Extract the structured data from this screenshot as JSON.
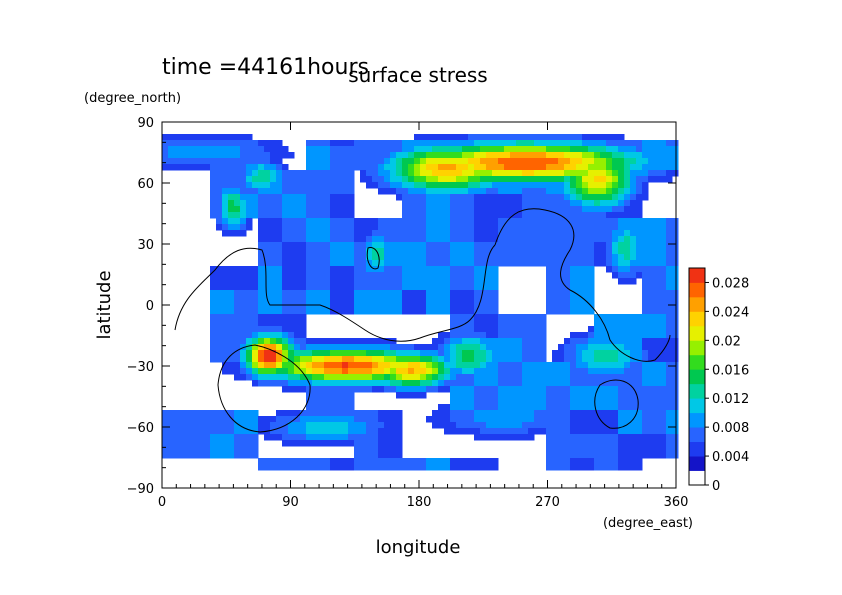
{
  "time_label": "time =44161hours",
  "chart_data": {
    "type": "heatmap",
    "title": "surface stress",
    "xlabel": "longitude",
    "ylabel": "latitude",
    "x_unit": "(degree_east)",
    "y_unit": "(degree_north)",
    "xlim": [
      0,
      360
    ],
    "ylim": [
      -90,
      90
    ],
    "x_ticks": [
      0,
      90,
      180,
      270,
      360
    ],
    "y_ticks": [
      -90,
      -60,
      -30,
      0,
      30,
      60,
      90
    ],
    "colorbar": {
      "min": 0,
      "max": 0.03,
      "tick_values": [
        0,
        0.004,
        0.008,
        0.012,
        0.016,
        0.02,
        0.024,
        0.028
      ],
      "tick_labels": [
        "0",
        "0.004",
        "0.008",
        "0.012",
        "0.016",
        "0.02",
        "0.024",
        "0.028"
      ],
      "colors": [
        "#ffffff",
        "#1414c8",
        "#1e3cf0",
        "#2864ff",
        "#0096ff",
        "#00c8e6",
        "#00d2a0",
        "#00c850",
        "#32dc1e",
        "#96f000",
        "#e6f000",
        "#ffd200",
        "#ffa000",
        "#ff6400",
        "#f03214"
      ]
    },
    "grid": false,
    "features": [
      {
        "lon": 255,
        "lat": 70,
        "value": 0.028,
        "spread_lon": 55,
        "spread_lat": 7
      },
      {
        "lon": 200,
        "lat": 67,
        "value": 0.024,
        "spread_lon": 30,
        "spread_lat": 8
      },
      {
        "lon": 305,
        "lat": 62,
        "value": 0.022,
        "spread_lon": 18,
        "spread_lat": 10
      },
      {
        "lon": 75,
        "lat": -25,
        "value": 0.03,
        "spread_lon": 12,
        "spread_lat": 7
      },
      {
        "lon": 130,
        "lat": -30,
        "value": 0.028,
        "spread_lon": 40,
        "spread_lat": 6
      },
      {
        "lon": 175,
        "lat": -32,
        "value": 0.024,
        "spread_lon": 20,
        "spread_lat": 6
      },
      {
        "lon": 215,
        "lat": -25,
        "value": 0.014,
        "spread_lon": 15,
        "spread_lat": 8
      },
      {
        "lon": 310,
        "lat": -25,
        "value": 0.012,
        "spread_lon": 20,
        "spread_lat": 8
      },
      {
        "lon": 50,
        "lat": 48,
        "value": 0.014,
        "spread_lon": 8,
        "spread_lat": 8
      },
      {
        "lon": 70,
        "lat": 63,
        "value": 0.012,
        "spread_lon": 12,
        "spread_lat": 6
      },
      {
        "lon": 150,
        "lat": 25,
        "value": 0.012,
        "spread_lon": 8,
        "spread_lat": 8
      },
      {
        "lon": 115,
        "lat": -60,
        "value": 0.01,
        "spread_lon": 30,
        "spread_lat": 6
      },
      {
        "lon": 240,
        "lat": -55,
        "value": 0.008,
        "spread_lon": 35,
        "spread_lat": 7
      },
      {
        "lon": 325,
        "lat": 28,
        "value": 0.012,
        "spread_lon": 10,
        "spread_lat": 10
      },
      {
        "lon": 30,
        "lat": 75,
        "value": 0.008,
        "spread_lon": 40,
        "spread_lat": 6
      }
    ]
  }
}
